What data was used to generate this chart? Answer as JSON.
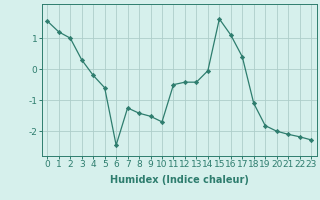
{
  "x": [
    0,
    1,
    2,
    3,
    4,
    5,
    6,
    7,
    8,
    9,
    10,
    11,
    12,
    13,
    14,
    15,
    16,
    17,
    18,
    19,
    20,
    21,
    22,
    23
  ],
  "y": [
    1.55,
    1.2,
    1.0,
    0.3,
    -0.2,
    -0.6,
    -2.45,
    -1.25,
    -1.42,
    -1.52,
    -1.7,
    -0.5,
    -0.42,
    -0.42,
    -0.05,
    1.62,
    1.1,
    0.4,
    -1.1,
    -1.82,
    -2.0,
    -2.1,
    -2.18,
    -2.28
  ],
  "line_color": "#2e7d6e",
  "marker": "D",
  "marker_size": 2.2,
  "bg_color": "#d6f0ec",
  "grid_color": "#aececa",
  "xlabel": "Humidex (Indice chaleur)",
  "xlabel_fontsize": 7,
  "tick_fontsize": 6.5,
  "ylim": [
    -2.8,
    2.1
  ],
  "xlim": [
    -0.5,
    23.5
  ],
  "yticks": [
    -2,
    -1,
    0,
    1
  ],
  "xticks": [
    0,
    1,
    2,
    3,
    4,
    5,
    6,
    7,
    8,
    9,
    10,
    11,
    12,
    13,
    14,
    15,
    16,
    17,
    18,
    19,
    20,
    21,
    22,
    23
  ]
}
